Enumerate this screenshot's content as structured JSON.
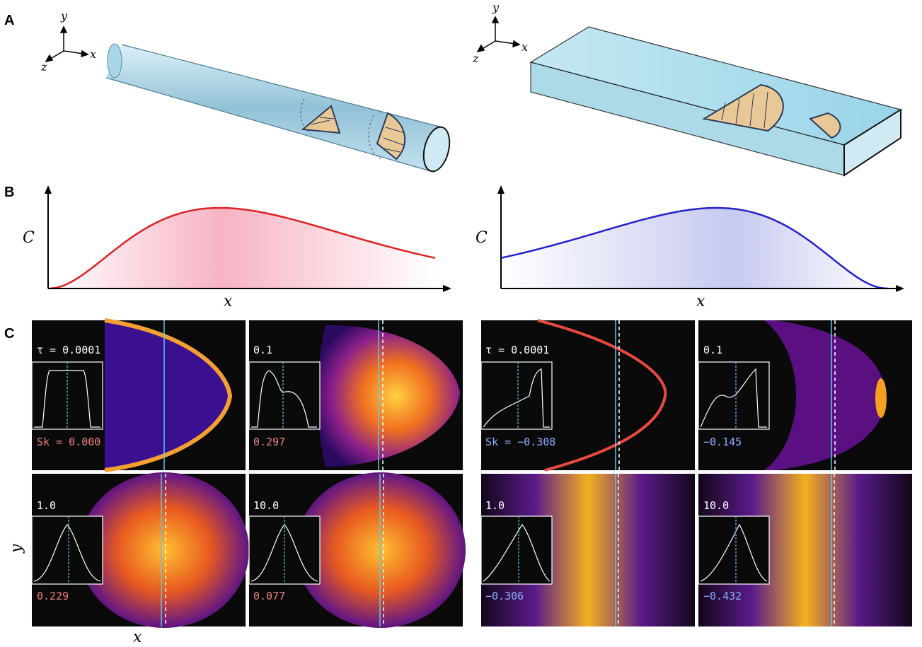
{
  "panel_labels": {
    "a": "A",
    "b": "B",
    "c": "C"
  },
  "axes_3d": {
    "x": "x",
    "y": "y",
    "z": "z"
  },
  "panel_b": {
    "ylabel": "C",
    "xlabel": "x"
  },
  "panel_c": {
    "xlabel": "x",
    "ylabel": "y"
  },
  "colors": {
    "pipe": "#a8d4e8",
    "channel": "#a8dcea",
    "skew_positive": "#f08080",
    "skew_negative": "#8ab0ff",
    "curve_red": "#dd2222",
    "curve_blue": "#2222cc",
    "centerline": "#5fc7e8"
  },
  "snapshots": {
    "pipe": [
      {
        "tau": "τ = 0.0001",
        "sk": "Sk = 0.000"
      },
      {
        "tau": "0.1",
        "sk": "0.297"
      },
      {
        "tau": "1.0",
        "sk": "0.229"
      },
      {
        "tau": "10.0",
        "sk": "0.077"
      }
    ],
    "channel": [
      {
        "tau": "τ = 0.0001",
        "sk": "Sk = −0.308"
      },
      {
        "tau": "0.1",
        "sk": "−0.145"
      },
      {
        "tau": "1.0",
        "sk": "−0.306"
      },
      {
        "tau": "10.0",
        "sk": "−0.432"
      }
    ]
  },
  "chart_data": [
    {
      "type": "area",
      "panel": "B-left",
      "xlabel": "x",
      "ylabel": "C",
      "skew": "positive"
    },
    {
      "type": "area",
      "panel": "B-right",
      "xlabel": "x",
      "ylabel": "C",
      "skew": "negative"
    }
  ]
}
